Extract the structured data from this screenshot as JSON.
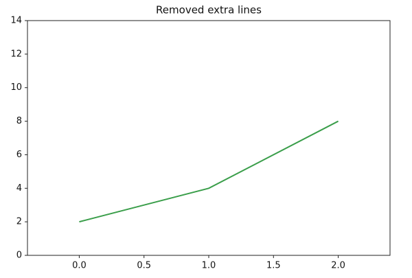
{
  "chart_data": {
    "type": "line",
    "title": "Removed extra lines",
    "x": [
      0,
      1,
      2
    ],
    "values": [
      2,
      4,
      8
    ],
    "color": "#3a9e4a",
    "xlim": [
      -0.4,
      2.4
    ],
    "xticks": [
      {
        "value": 0,
        "label": "0.0"
      },
      0.5,
      {
        "value": 1,
        "label": "1.0"
      },
      1.5,
      {
        "value": 2,
        "label": "2.0"
      }
    ],
    "ylim": [
      0,
      14
    ],
    "yticks": [
      0,
      2,
      4,
      6,
      8,
      10,
      12,
      14
    ],
    "grid": false
  }
}
